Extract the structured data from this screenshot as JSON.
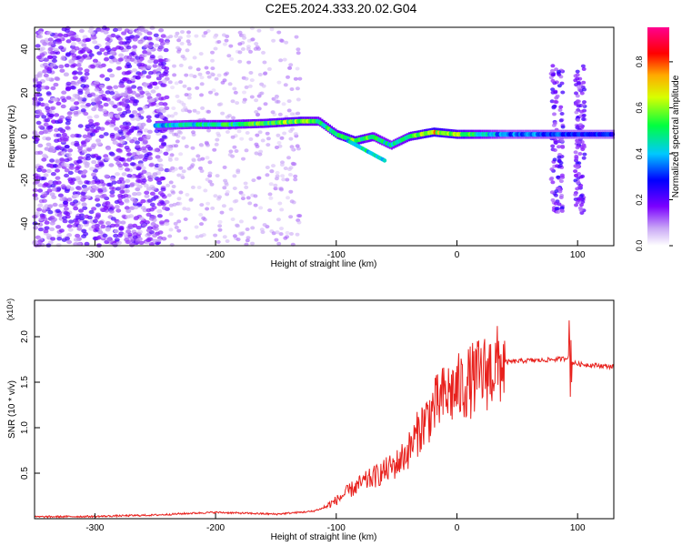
{
  "figure_title": "C2E5.2024.333.20.02.G04",
  "chart_data": [
    {
      "type": "heatmap",
      "xlabel": "Height of straight line (km)",
      "ylabel": "Frequency (Hz)",
      "xlim": [
        -350,
        130
      ],
      "ylim": [
        -50,
        50
      ],
      "xticks": [
        -300,
        -200,
        -100,
        0,
        100
      ],
      "yticks": [
        -40,
        -20,
        0,
        20,
        40
      ],
      "grid": false,
      "colorbar": {
        "label": "Normalized spectral amplitude",
        "range": [
          0.0,
          0.95
        ],
        "ticks": [
          0.0,
          0.2,
          0.4,
          0.6,
          0.8
        ],
        "colormap": "rainbow (violet-blue-cyan-green-yellow-red-magenta)"
      },
      "ridge": {
        "x": [
          -250,
          -220,
          -190,
          -160,
          -130,
          -115,
          -100,
          -85,
          -70,
          -55,
          -40,
          -20,
          0,
          40,
          75,
          100,
          130
        ],
        "frequency": [
          5,
          5.5,
          5.5,
          6,
          7,
          7,
          1,
          -2,
          0,
          -4,
          0,
          2,
          1,
          1,
          1,
          1,
          1
        ],
        "amplitude": [
          0.4,
          0.45,
          0.5,
          0.55,
          0.6,
          0.5,
          0.55,
          0.6,
          0.5,
          0.45,
          0.55,
          0.7,
          0.6,
          0.35,
          0.35,
          0.3,
          0.3
        ]
      }
    },
    {
      "type": "line",
      "xlabel": "Height of straight line (km)",
      "ylabel": "SNR (10 * v/v)",
      "yscale_label": "(x10⁴)",
      "xlim": [
        -350,
        130
      ],
      "ylim": [
        0,
        2.4
      ],
      "xticks": [
        -300,
        -200,
        -100,
        0,
        100
      ],
      "yticks": [
        0.5,
        1.0,
        1.5,
        2.0
      ],
      "grid": false,
      "series": [
        {
          "color": "#e8211d",
          "x": [
            -350,
            -300,
            -250,
            -220,
            -200,
            -150,
            -120,
            -110,
            -100,
            -90,
            -80,
            -70,
            -60,
            -50,
            -40,
            -30,
            -20,
            -10,
            0,
            10,
            20,
            30,
            40,
            50,
            60,
            70,
            80,
            90,
            93,
            95,
            100,
            110,
            120,
            130
          ],
          "values": [
            0.02,
            0.025,
            0.04,
            0.06,
            0.07,
            0.05,
            0.08,
            0.12,
            0.2,
            0.3,
            0.38,
            0.45,
            0.52,
            0.6,
            0.75,
            1.0,
            1.2,
            1.35,
            1.42,
            1.5,
            1.58,
            1.65,
            1.72,
            1.73,
            1.74,
            1.74,
            1.75,
            1.76,
            1.8,
            1.72,
            1.7,
            1.69,
            1.68,
            1.67
          ]
        }
      ]
    }
  ]
}
